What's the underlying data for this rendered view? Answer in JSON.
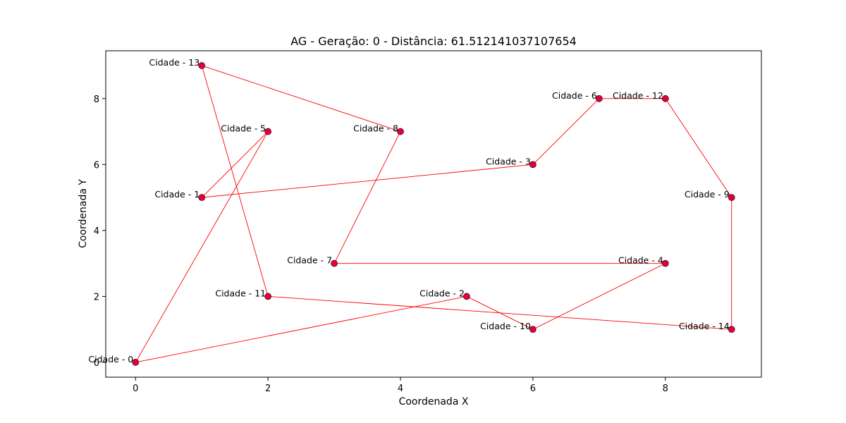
{
  "chart_data": {
    "type": "scatter",
    "title": "AG - Geração: 0 - Distância: 61.512141037107654",
    "xlabel": "Coordenada X",
    "ylabel": "Coordenada Y",
    "xlim": [
      -0.45,
      9.45
    ],
    "ylim": [
      -0.45,
      9.45
    ],
    "xticks": [
      0,
      2,
      4,
      6,
      8
    ],
    "yticks": [
      0,
      2,
      4,
      6,
      8
    ],
    "grid": false,
    "points": [
      {
        "label": "Cidade - 0",
        "x": 0,
        "y": 0
      },
      {
        "label": "Cidade - 1",
        "x": 1,
        "y": 5
      },
      {
        "label": "Cidade - 2",
        "x": 5,
        "y": 2
      },
      {
        "label": "Cidade - 3",
        "x": 6,
        "y": 6
      },
      {
        "label": "Cidade - 4",
        "x": 8,
        "y": 3
      },
      {
        "label": "Cidade - 5",
        "x": 2,
        "y": 7
      },
      {
        "label": "Cidade - 6",
        "x": 7,
        "y": 8
      },
      {
        "label": "Cidade - 7",
        "x": 3,
        "y": 3
      },
      {
        "label": "Cidade - 8",
        "x": 4,
        "y": 7
      },
      {
        "label": "Cidade - 9",
        "x": 9,
        "y": 5
      },
      {
        "label": "Cidade - 10",
        "x": 6,
        "y": 1
      },
      {
        "label": "Cidade - 11",
        "x": 2,
        "y": 2
      },
      {
        "label": "Cidade - 12",
        "x": 8,
        "y": 8
      },
      {
        "label": "Cidade - 13",
        "x": 1,
        "y": 9
      },
      {
        "label": "Cidade - 14",
        "x": 9,
        "y": 1
      }
    ],
    "route": [
      0,
      2,
      10,
      4,
      7,
      8,
      13,
      11,
      14,
      9,
      12,
      6,
      3,
      1,
      5,
      0
    ],
    "colors": {
      "route_line": "#ff0000",
      "marker_fill": "#e8002a",
      "marker_edge": "#3a1560"
    }
  }
}
